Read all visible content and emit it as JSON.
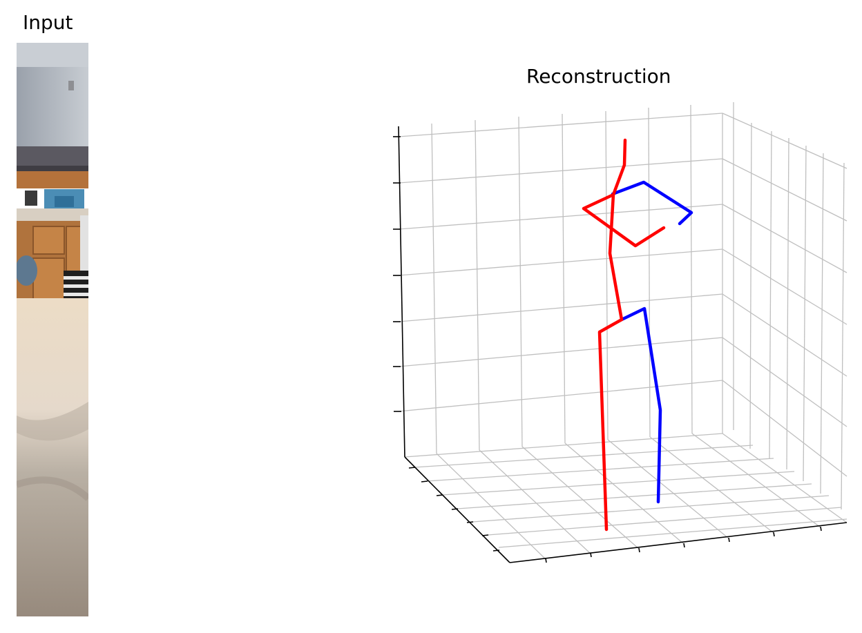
{
  "input_panel": {
    "title": "Input",
    "image_description": "photo-crop-kitchen-interior",
    "colors": {
      "wall": "#b9bfc6",
      "border": "#5d5a62",
      "cabinet": "#b8783f",
      "counter": "#d7cbb8",
      "carpet_light": "#e8dccb",
      "carpet_dark": "#9b8f82"
    }
  },
  "reconstruction": {
    "title": "Reconstruction",
    "colors": {
      "left_side": "#ff0000",
      "right_side": "#0000ff",
      "grid": "#bfbfbf",
      "axis": "#000000"
    }
  }
}
